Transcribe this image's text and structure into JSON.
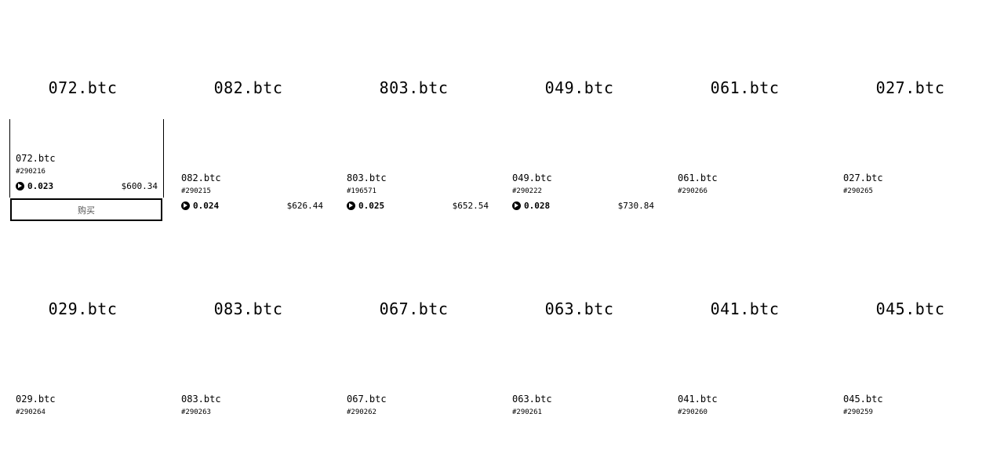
{
  "listings": [
    {
      "big": "072.btc",
      "name": "072.btc",
      "inscription": "#290216",
      "btc": "0.023",
      "usd": "$600.34",
      "hover": true,
      "button": "购买"
    },
    {
      "big": "082.btc",
      "name": "082.btc",
      "inscription": "#290215",
      "btc": "0.024",
      "usd": "$626.44"
    },
    {
      "big": "803.btc",
      "name": "803.btc",
      "inscription": "#196571",
      "btc": "0.025",
      "usd": "$652.54"
    },
    {
      "big": "049.btc",
      "name": "049.btc",
      "inscription": "#290222",
      "btc": "0.028",
      "usd": "$730.84"
    },
    {
      "big": "061.btc",
      "name": "061.btc",
      "inscription": "#290266"
    },
    {
      "big": "027.btc",
      "name": "027.btc",
      "inscription": "#290265"
    },
    {
      "big": "029.btc",
      "name": "029.btc",
      "inscription": "#290264"
    },
    {
      "big": "083.btc",
      "name": "083.btc",
      "inscription": "#290263"
    },
    {
      "big": "067.btc",
      "name": "067.btc",
      "inscription": "#290262"
    },
    {
      "big": "063.btc",
      "name": "063.btc",
      "inscription": "#290261"
    },
    {
      "big": "041.btc",
      "name": "041.btc",
      "inscription": "#290260"
    },
    {
      "big": "045.btc",
      "name": "045.btc",
      "inscription": "#290259"
    }
  ]
}
